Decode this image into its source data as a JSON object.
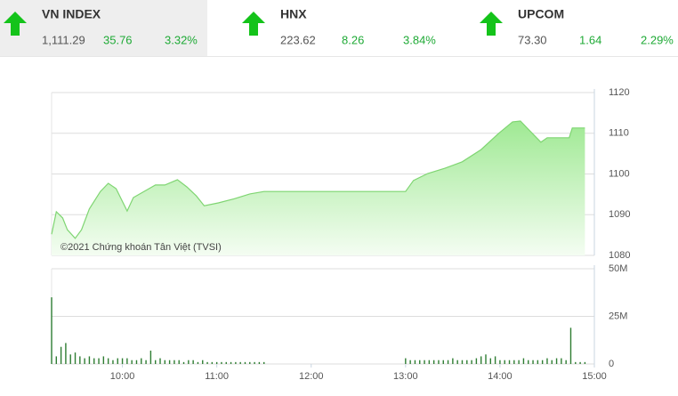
{
  "indices": [
    {
      "name": "VN INDEX",
      "value": "1,111.29",
      "change": "35.76",
      "percent": "3.32%"
    },
    {
      "name": "HNX",
      "value": "223.62",
      "change": "8.26",
      "percent": "3.84%"
    },
    {
      "name": "UPCOM",
      "value": "73.30",
      "change": "1.64",
      "percent": "2.29%"
    }
  ],
  "chart_data": [
    {
      "type": "area",
      "annotation": "©2021 Chứng khoán Tân Việt (TVSI)",
      "color": "#7fd572",
      "x": [
        555,
        558,
        562,
        565,
        570,
        574,
        579,
        586,
        591,
        596,
        603,
        607,
        616,
        621,
        627,
        635,
        641,
        647,
        652,
        661,
        671,
        681,
        690,
        780,
        785,
        794,
        805,
        816,
        828,
        839,
        848,
        853,
        858,
        866,
        870,
        884,
        886,
        894
      ],
      "values": [
        1085.2,
        1090.7,
        1089.2,
        1086.3,
        1084.2,
        1086.3,
        1091.4,
        1095.7,
        1097.7,
        1096.4,
        1090.9,
        1094.2,
        1096.2,
        1097.3,
        1097.3,
        1098.6,
        1096.8,
        1094.6,
        1092.2,
        1092.9,
        1093.9,
        1095.1,
        1095.7,
        1095.7,
        1098.4,
        1100.1,
        1101.4,
        1103,
        1106,
        1109.9,
        1112.8,
        1113,
        1111,
        1107.8,
        1108.9,
        1108.9,
        1111.3,
        1111.3
      ],
      "xlim": [
        555,
        900
      ],
      "ylim": [
        1080,
        1120
      ],
      "yticks": [
        1080,
        1090,
        1100,
        1110,
        1120
      ],
      "grid": true
    },
    {
      "type": "bar",
      "color": "#2e7d32",
      "x": [
        555,
        558,
        561,
        564,
        567,
        570,
        573,
        576,
        579,
        582,
        585,
        588,
        591,
        594,
        597,
        600,
        603,
        606,
        609,
        612,
        615,
        618,
        621,
        624,
        627,
        630,
        633,
        636,
        639,
        642,
        645,
        648,
        651,
        654,
        657,
        660,
        663,
        666,
        669,
        672,
        675,
        678,
        681,
        684,
        687,
        690,
        780,
        783,
        786,
        789,
        792,
        795,
        798,
        801,
        804,
        807,
        810,
        813,
        816,
        819,
        822,
        825,
        828,
        831,
        834,
        837,
        840,
        843,
        846,
        849,
        852,
        855,
        858,
        861,
        864,
        867,
        870,
        873,
        876,
        879,
        882,
        885,
        888,
        891,
        894
      ],
      "values": [
        35,
        4,
        9,
        11,
        5,
        6,
        4,
        3,
        4,
        3,
        3,
        4,
        3,
        2,
        3,
        3,
        3,
        2,
        2,
        3,
        2,
        7,
        2,
        3,
        2,
        2,
        2,
        2,
        1,
        2,
        2,
        1,
        2,
        1,
        1,
        1,
        1,
        1,
        1,
        1,
        1,
        1,
        1,
        1,
        1,
        1,
        3,
        2,
        2,
        2,
        2,
        2,
        2,
        2,
        2,
        2,
        3,
        2,
        2,
        2,
        2,
        3,
        4,
        5,
        3,
        4,
        2,
        2,
        2,
        2,
        2,
        3,
        2,
        2,
        2,
        2,
        3,
        2,
        3,
        3,
        2,
        19,
        1,
        1,
        1
      ],
      "xlim": [
        555,
        900
      ],
      "ylim": [
        0,
        50
      ],
      "yticks": [
        0,
        {
          "value": 25,
          "label": "25M"
        },
        {
          "value": 50,
          "label": "50M"
        }
      ],
      "xticks": [
        {
          "value": 600,
          "label": "10:00"
        },
        {
          "value": 660,
          "label": "11:00"
        },
        {
          "value": 720,
          "label": "12:00"
        },
        {
          "value": 780,
          "label": "13:00"
        },
        {
          "value": 840,
          "label": "14:00"
        },
        {
          "value": 900,
          "label": "15:00"
        }
      ],
      "grid": true
    }
  ]
}
